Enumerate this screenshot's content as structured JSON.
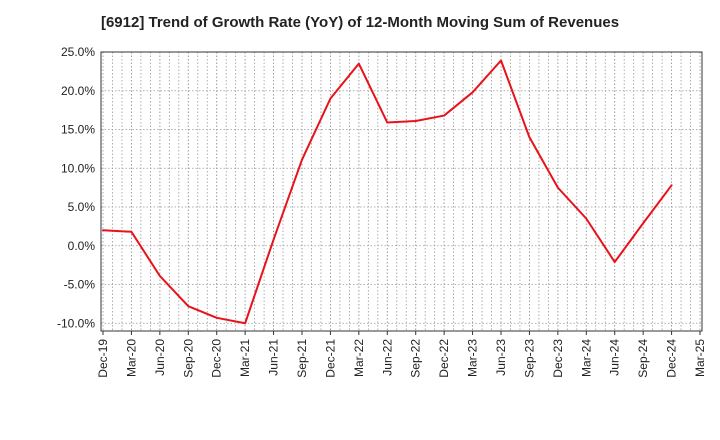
{
  "chart_data": {
    "type": "line",
    "title": "[6912]  Trend of Growth Rate (YoY) of 12-Month Moving Sum of Revenues",
    "xlabel": "",
    "ylabel": "",
    "ylim": [
      -11.0,
      25.0
    ],
    "y_ticks": [
      25.0,
      20.0,
      15.0,
      10.0,
      5.0,
      0.0,
      -5.0,
      -10.0
    ],
    "y_tick_labels": [
      "25.0%",
      "20.0%",
      "15.0%",
      "10.0%",
      "5.0%",
      "0.0%",
      "-5.0%",
      "-10.0%"
    ],
    "x_tick_labels": [
      "Dec-19",
      "Mar-20",
      "Jun-20",
      "Sep-20",
      "Dec-20",
      "Mar-21",
      "Jun-21",
      "Sep-21",
      "Dec-21",
      "Mar-22",
      "Jun-22",
      "Sep-22",
      "Dec-22",
      "Mar-23",
      "Jun-23",
      "Sep-23",
      "Dec-23",
      "Mar-24",
      "Jun-24",
      "Sep-24",
      "Dec-24",
      "Mar-25"
    ],
    "grid": true,
    "legend": "none",
    "series": [
      {
        "color": "#e8121a",
        "values": [
          2.0,
          1.8,
          -3.9,
          -7.8,
          -9.3,
          -10.0,
          0.8,
          11.1,
          19.0,
          23.5,
          15.9,
          16.1,
          16.8,
          19.8,
          23.9,
          14.0,
          7.5,
          3.5,
          -2.1,
          2.9,
          7.8,
          null
        ]
      }
    ]
  }
}
